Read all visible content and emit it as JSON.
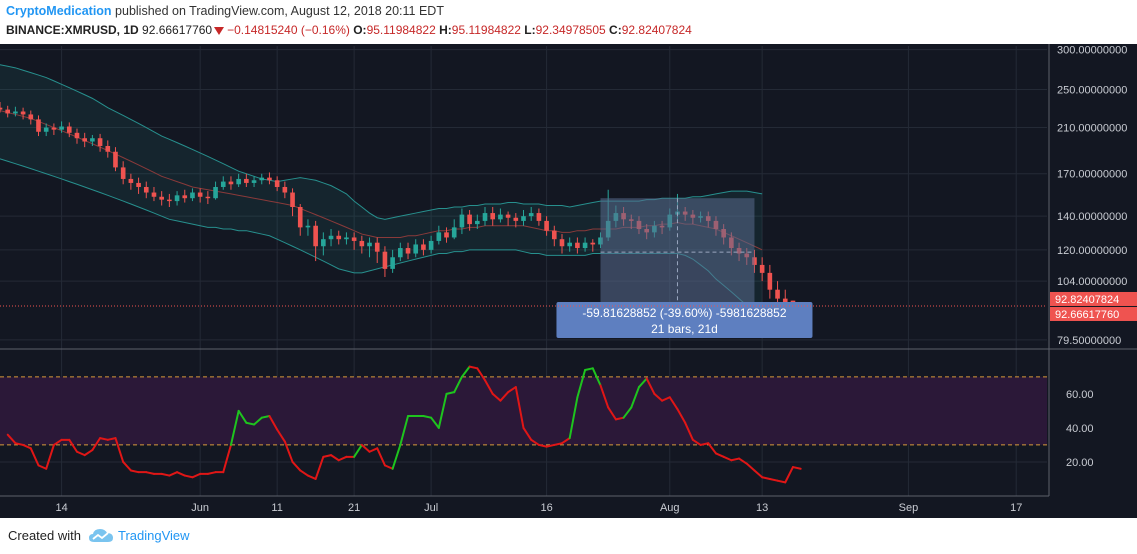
{
  "header": {
    "author": "CryptoMedication",
    "published_text": "published on TradingView.com, August 12, 2018 20:11 EDT",
    "symbol": "BINANCE:XMRUSD, 1D",
    "last": "92.66617760",
    "change": "−0.14815240 (−0.16%)",
    "o_label": "O:",
    "o": "95.11984822",
    "h_label": "H:",
    "h": "95.11984822",
    "l_label": "L:",
    "l": "92.34978505",
    "c_label": "C:",
    "c": "92.82407824"
  },
  "footer": {
    "created_with": "Created with",
    "brand": "TradingView"
  },
  "colors": {
    "background": "#131722",
    "up": "#26a69a",
    "down": "#ef5350",
    "bollinger": "#27908e",
    "rsi_up": "#1ec41e",
    "rsi_down": "#e01616",
    "rsi_band": "#2b1838",
    "measure_box": "#5a6c8e",
    "measure_label": "#5e7fc0"
  },
  "chart_data": [
    {
      "type": "candlestick",
      "title": "",
      "price_scale": "log",
      "ylim": [
        78,
        305
      ],
      "y_ticks": [
        "300.00000000",
        "250.00000000",
        "210.00000000",
        "170.00000000",
        "140.00000000",
        "120.00000000",
        "104.00000000",
        "79.50000000"
      ],
      "y_tick_values": [
        300,
        250,
        210,
        170,
        140,
        120,
        104,
        79.5
      ],
      "x_ticks": [
        "14",
        "Jun",
        "11",
        "21",
        "Jul",
        "16",
        "Aug",
        "13",
        "Sep",
        "17"
      ],
      "x_tick_days": [
        12,
        30,
        40,
        50,
        60,
        75,
        91,
        103,
        122,
        136
      ],
      "x_range_days": [
        4,
        140
      ],
      "last_price_labels": [
        "92.82407824",
        "92.66617760"
      ],
      "candles": [
        [
          230,
          228,
          236,
          225
        ],
        [
          228,
          224,
          232,
          220
        ],
        [
          224,
          226,
          231,
          221
        ],
        [
          226,
          223,
          230,
          218
        ],
        [
          223,
          218,
          227,
          213
        ],
        [
          218,
          206,
          222,
          202
        ],
        [
          206,
          210,
          214,
          202
        ],
        [
          210,
          208,
          214,
          203
        ],
        [
          208,
          211,
          216,
          205
        ],
        [
          211,
          205,
          215,
          201
        ],
        [
          205,
          200,
          209,
          195
        ],
        [
          200,
          197,
          205,
          192
        ],
        [
          197,
          200,
          203,
          193
        ],
        [
          200,
          193,
          204,
          188
        ],
        [
          193,
          188,
          198,
          183
        ],
        [
          188,
          175,
          192,
          172
        ],
        [
          175,
          166,
          180,
          162
        ],
        [
          166,
          163,
          170,
          158
        ],
        [
          163,
          160,
          167,
          155
        ],
        [
          160,
          156,
          164,
          152
        ],
        [
          156,
          153,
          160,
          150
        ],
        [
          153,
          151,
          157,
          147
        ],
        [
          151,
          150,
          155,
          146
        ],
        [
          150,
          154,
          157,
          147
        ],
        [
          154,
          152,
          158,
          149
        ],
        [
          152,
          156,
          159,
          150
        ],
        [
          156,
          153,
          159,
          149
        ],
        [
          153,
          152,
          157,
          148
        ],
        [
          152,
          160,
          164,
          151
        ],
        [
          160,
          164,
          168,
          158
        ],
        [
          164,
          162,
          168,
          158
        ],
        [
          162,
          166,
          170,
          160
        ],
        [
          166,
          163,
          170,
          160
        ],
        [
          163,
          165,
          168,
          160
        ],
        [
          165,
          167,
          170,
          162
        ],
        [
          167,
          165,
          171,
          162
        ],
        [
          165,
          160,
          168,
          157
        ],
        [
          160,
          156,
          164,
          152
        ],
        [
          156,
          146,
          159,
          140
        ],
        [
          146,
          133,
          148,
          128
        ],
        [
          133,
          134,
          138,
          128
        ],
        [
          134,
          122,
          137,
          114
        ],
        [
          122,
          126,
          130,
          117
        ],
        [
          126,
          128,
          132,
          122
        ],
        [
          128,
          126,
          131,
          123
        ],
        [
          126,
          127,
          130,
          123
        ],
        [
          127,
          125,
          130,
          120
        ],
        [
          125,
          122,
          128,
          118
        ],
        [
          122,
          124,
          127,
          116
        ],
        [
          124,
          119,
          127,
          113
        ],
        [
          119,
          110,
          122,
          106
        ],
        [
          110,
          116,
          120,
          108
        ],
        [
          116,
          121,
          124,
          114
        ],
        [
          121,
          118,
          124,
          115
        ],
        [
          118,
          123,
          126,
          116
        ],
        [
          123,
          120,
          126,
          117
        ],
        [
          120,
          125,
          128,
          118
        ],
        [
          125,
          130,
          134,
          123
        ],
        [
          130,
          127,
          133,
          124
        ],
        [
          127,
          133,
          138,
          126
        ],
        [
          133,
          141,
          145,
          129
        ],
        [
          141,
          135,
          144,
          131
        ],
        [
          135,
          137,
          141,
          132
        ],
        [
          137,
          142,
          146,
          134
        ],
        [
          142,
          138,
          146,
          134
        ],
        [
          138,
          141,
          145,
          136
        ],
        [
          141,
          139,
          143,
          134
        ],
        [
          139,
          137,
          142,
          133
        ],
        [
          137,
          140,
          144,
          134
        ],
        [
          140,
          142,
          146,
          137
        ],
        [
          142,
          137,
          145,
          134
        ],
        [
          137,
          131,
          140,
          128
        ],
        [
          131,
          126,
          134,
          122
        ],
        [
          126,
          122,
          129,
          118
        ],
        [
          122,
          124,
          127,
          119
        ],
        [
          124,
          121,
          127,
          118
        ],
        [
          121,
          124,
          127,
          119
        ],
        [
          124,
          123,
          126,
          119
        ],
        [
          123,
          127,
          130,
          121
        ],
        [
          127,
          137,
          158,
          125
        ],
        [
          137,
          142,
          147,
          133
        ],
        [
          142,
          138,
          146,
          134
        ],
        [
          138,
          137,
          141,
          132
        ],
        [
          137,
          132,
          140,
          129
        ],
        [
          132,
          130,
          135,
          126
        ],
        [
          130,
          134,
          137,
          127
        ],
        [
          134,
          133,
          137,
          129
        ],
        [
          133,
          141,
          145,
          131
        ],
        [
          141,
          143,
          155,
          138
        ],
        [
          143,
          141,
          146,
          137
        ],
        [
          141,
          139,
          144,
          135
        ],
        [
          139,
          140,
          143,
          136
        ],
        [
          140,
          137,
          143,
          133
        ],
        [
          137,
          132,
          140,
          128
        ],
        [
          132,
          127,
          135,
          123
        ],
        [
          127,
          121,
          130,
          117
        ],
        [
          121,
          118,
          124,
          114
        ],
        [
          118,
          116,
          121,
          112
        ],
        [
          116,
          112,
          120,
          108
        ],
        [
          112,
          108,
          116,
          104
        ],
        [
          108,
          100,
          112,
          96
        ],
        [
          100,
          96,
          104,
          92
        ],
        [
          96,
          94,
          100,
          90
        ],
        [
          95.12,
          92.82,
          95.12,
          92.35
        ]
      ],
      "bollinger": {
        "upper": [
          285,
          285,
          284,
          282,
          280,
          278,
          276,
          273,
          270,
          267,
          264,
          260,
          256,
          252,
          248,
          244,
          240,
          235,
          230,
          226,
          222,
          218,
          214,
          210,
          206,
          202,
          199,
          196,
          193,
          190,
          187,
          184,
          181,
          178,
          175,
          172,
          170,
          168,
          166,
          165,
          164,
          165,
          166,
          167,
          166,
          165,
          163,
          161,
          158,
          155,
          150,
          146,
          142,
          139,
          138,
          139,
          140,
          141,
          142,
          143,
          144,
          145,
          145,
          146,
          146,
          147,
          147,
          148,
          148,
          148,
          149,
          149,
          148,
          148,
          148,
          147,
          147,
          147,
          146,
          147,
          148,
          149,
          150,
          150,
          150,
          150,
          150,
          150,
          151,
          151,
          152,
          152,
          152,
          152,
          153,
          153,
          154,
          155,
          156,
          157,
          157,
          157,
          156,
          155
        ],
        "middle": [
          232,
          231,
          230,
          229,
          227,
          225,
          223,
          221,
          219,
          216,
          213,
          210,
          207,
          204,
          201,
          198,
          195,
          192,
          189,
          186,
          183,
          180,
          177,
          174,
          171,
          168,
          166,
          164,
          162,
          160,
          159,
          158,
          157,
          156,
          155,
          154,
          153,
          152,
          151,
          150,
          149,
          148,
          147,
          145,
          143,
          141,
          139,
          137,
          135,
          133,
          131,
          129,
          128,
          127,
          127,
          127,
          127,
          128,
          128,
          129,
          130,
          131,
          131,
          132,
          132,
          133,
          133,
          134,
          134,
          134,
          134,
          134,
          134,
          133,
          132,
          131,
          131,
          130,
          130,
          131,
          131,
          132,
          132,
          132,
          132,
          133,
          133,
          133,
          134,
          134,
          135,
          135,
          136,
          135,
          135,
          134,
          133,
          132,
          130,
          128,
          126,
          124,
          122,
          120
        ],
        "lower": [
          190,
          188,
          186,
          184,
          182,
          180,
          178,
          176,
          174,
          172,
          170,
          168,
          166,
          164,
          162,
          160,
          158,
          156,
          154,
          152,
          150,
          148,
          146,
          144,
          142,
          140,
          138,
          137,
          136,
          135,
          134,
          133,
          133,
          132,
          132,
          131,
          131,
          130,
          129,
          128,
          126,
          124,
          122,
          120,
          118,
          116,
          114,
          112,
          110,
          109,
          108,
          108,
          109,
          110,
          111,
          112,
          113,
          114,
          115,
          116,
          117,
          118,
          118,
          119,
          119,
          120,
          120,
          120,
          120,
          120,
          120,
          120,
          119,
          118,
          118,
          117,
          117,
          117,
          117,
          117,
          117,
          118,
          118,
          118,
          118,
          118,
          118,
          118,
          118,
          118,
          118,
          118,
          118,
          117,
          115,
          112,
          109,
          105,
          102,
          99,
          96,
          93,
          90,
          88
        ]
      },
      "measure": {
        "label_line1": "-59.81628852 (-39.60%) -5981628852",
        "label_line2": "21 bars, 21d",
        "start_day": 82,
        "end_day": 102,
        "top_price": 152,
        "bottom_price": 92.8
      }
    },
    {
      "type": "line",
      "title": "",
      "ylim": [
        0,
        84
      ],
      "y_ticks": [
        "60.00",
        "40.00",
        "20.00"
      ],
      "y_tick_values": [
        60,
        40,
        20
      ],
      "overbought": 70,
      "oversold": 30,
      "series": [
        {
          "x_start_day": 5,
          "values": [
            36,
            31,
            30,
            28,
            18,
            16,
            30,
            33,
            33,
            26,
            24,
            27,
            34,
            33,
            34,
            20,
            15,
            14,
            14,
            13,
            13,
            12,
            14,
            12,
            11,
            13,
            13,
            14,
            14,
            30,
            50,
            43,
            42,
            46,
            47,
            39,
            32,
            20,
            15,
            12,
            10,
            23,
            24,
            21,
            23,
            23,
            30,
            26,
            28,
            18,
            16,
            30,
            47,
            47,
            47,
            46,
            40,
            60,
            61,
            70,
            76,
            75,
            68,
            60,
            56,
            61,
            64,
            40,
            33,
            30,
            29,
            30,
            31,
            34,
            58,
            74,
            75,
            65,
            52,
            45,
            46,
            52,
            64,
            69,
            60,
            56,
            58,
            51,
            43,
            33,
            30,
            31,
            25,
            23,
            21,
            22,
            19,
            15,
            11,
            10,
            9,
            8,
            17,
            16
          ],
          "up_segments": [
            [
              29,
              34
            ],
            [
              45,
              46
            ],
            [
              50,
              60
            ],
            [
              73,
              77
            ],
            [
              80,
              83
            ]
          ]
        }
      ]
    }
  ]
}
